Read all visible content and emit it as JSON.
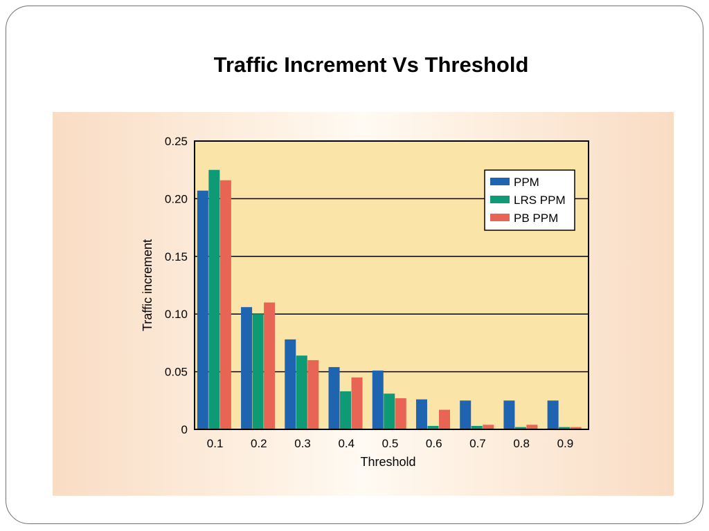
{
  "slide": {
    "title": "Traffic Increment Vs Threshold"
  },
  "chart_data": {
    "type": "bar",
    "title": "Traffic Increment Vs Threshold",
    "xlabel": "Threshold",
    "ylabel": "Traffic increment",
    "categories": [
      "0.1",
      "0.2",
      "0.3",
      "0.4",
      "0.5",
      "0.6",
      "0.7",
      "0.8",
      "0.9"
    ],
    "ylim": [
      0,
      0.25
    ],
    "yticks": [
      0,
      0.05,
      0.1,
      0.15,
      0.2,
      0.25
    ],
    "ytick_labels": [
      "0",
      "0.05",
      "0.10",
      "0.15",
      "0.20",
      "0.25"
    ],
    "grid": "horizontal",
    "legend": "top-right",
    "series": [
      {
        "name": "PPM",
        "color": "#1f64b0",
        "values": [
          0.207,
          0.106,
          0.078,
          0.054,
          0.051,
          0.026,
          0.025,
          0.025,
          0.025
        ]
      },
      {
        "name": "LRS PPM",
        "color": "#0f9a76",
        "values": [
          0.225,
          0.1,
          0.064,
          0.033,
          0.031,
          0.003,
          0.003,
          0.002,
          0.002
        ]
      },
      {
        "name": "PB PPM",
        "color": "#e86556",
        "values": [
          0.216,
          0.11,
          0.06,
          0.045,
          0.027,
          0.017,
          0.004,
          0.004,
          0.002
        ]
      }
    ],
    "colors": {
      "plot_background": "#fbe4a8",
      "gridline": "#000000"
    }
  }
}
